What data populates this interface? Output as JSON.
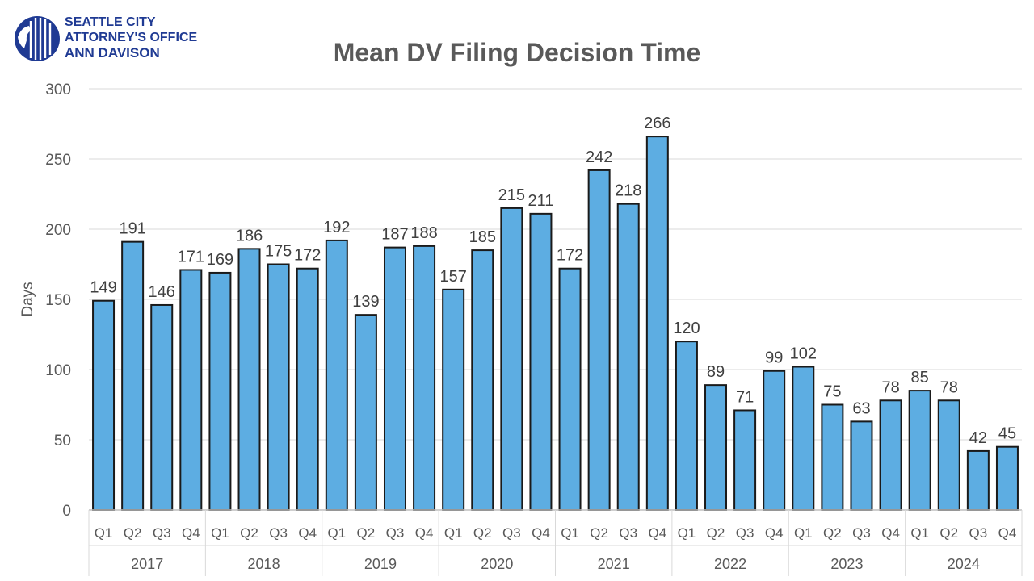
{
  "logo": {
    "line1": "SEATTLE CITY",
    "line2": "ATTORNEY'S OFFICE",
    "line3": "ANN DAVISON",
    "color": "#1f3a93"
  },
  "chart_data": {
    "type": "bar",
    "title": "Mean DV Filing Decision Time",
    "ylabel": "Days",
    "xlabel": "",
    "ylim": [
      0,
      300
    ],
    "yticks": [
      "0",
      "50",
      "100",
      "150",
      "200",
      "250",
      "300"
    ],
    "grid": true,
    "bar_color": "#5dade2",
    "years": [
      "2017",
      "2018",
      "2019",
      "2020",
      "2021",
      "2022",
      "2023",
      "2024"
    ],
    "quarters": [
      "Q1",
      "Q2",
      "Q3",
      "Q4"
    ],
    "values": [
      149,
      191,
      146,
      171,
      169,
      186,
      175,
      172,
      192,
      139,
      187,
      188,
      157,
      185,
      215,
      211,
      172,
      242,
      218,
      266,
      120,
      89,
      71,
      99,
      102,
      75,
      63,
      78,
      85,
      78,
      42,
      45
    ]
  }
}
